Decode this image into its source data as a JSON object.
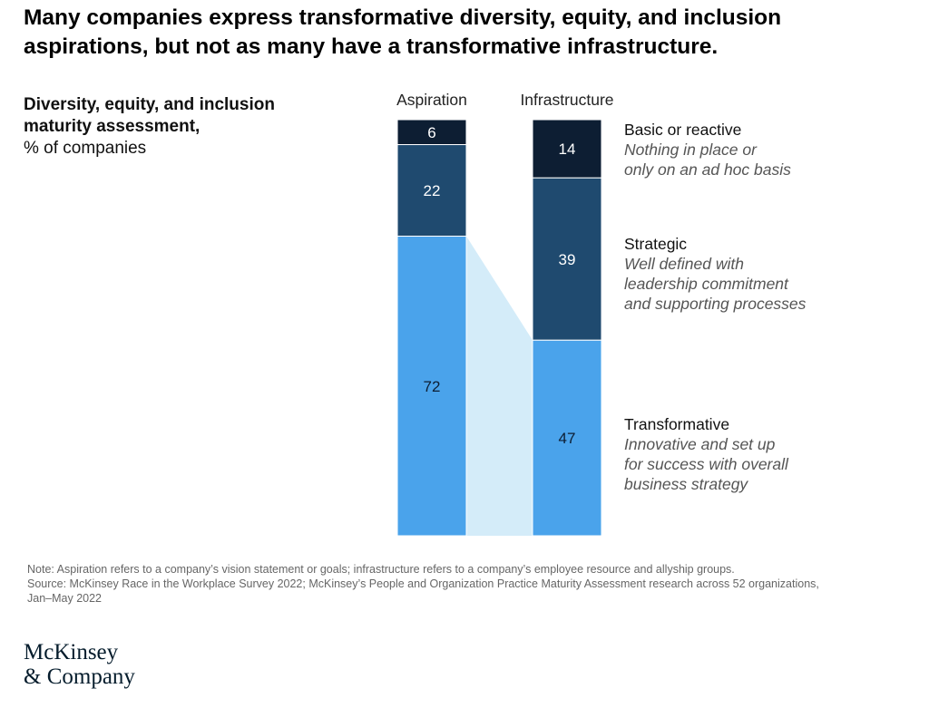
{
  "header": {
    "title_line1": "Many companies express transformative diversity, equity, and inclusion",
    "title_line2": "aspirations, but not as many have a transformative infrastructure."
  },
  "subtitle": {
    "bold_line1": "Diversity, equity, and inclusion",
    "bold_line2": "maturity assessment,",
    "unit": "% of companies"
  },
  "legend": [
    {
      "name": "Basic or reactive",
      "desc": [
        "Nothing in place or",
        "only on an ad hoc basis"
      ]
    },
    {
      "name": "Strategic",
      "desc": [
        "Well defined with",
        "leadership commitment",
        "and supporting processes"
      ]
    },
    {
      "name": "Transformative",
      "desc": [
        "Innovative and set up",
        "for success with overall",
        "business strategy"
      ]
    }
  ],
  "chart_data": {
    "type": "bar",
    "stacked": true,
    "percent_scale": 100,
    "categories": [
      "Aspiration",
      "Infrastructure"
    ],
    "series": [
      {
        "name": "Basic or reactive",
        "values": [
          6,
          14
        ],
        "color": "#0d1e33",
        "label_color": "#ffffff"
      },
      {
        "name": "Strategic",
        "values": [
          22,
          39
        ],
        "color": "#1f4a6f",
        "label_color": "#ffffff"
      },
      {
        "name": "Transformative",
        "values": [
          72,
          47
        ],
        "color": "#4aa3eb",
        "label_color": "#0d1e33"
      }
    ],
    "connector_color": "#d4ecf9",
    "title": "Diversity, equity, and inclusion maturity assessment, % of companies"
  },
  "footnote": {
    "note": "Note: Aspiration refers to a company’s vision statement or goals; infrastructure refers to a company’s employee resource and allyship groups.",
    "source_line1": "Source: McKinsey Race in the Workplace Survey 2022; McKinsey’s People and Organization Practice Maturity Assessment research across 52 organizations,",
    "source_line2": "Jan–May 2022"
  },
  "logo": {
    "line1": "McKinsey",
    "line2": "& Company"
  }
}
